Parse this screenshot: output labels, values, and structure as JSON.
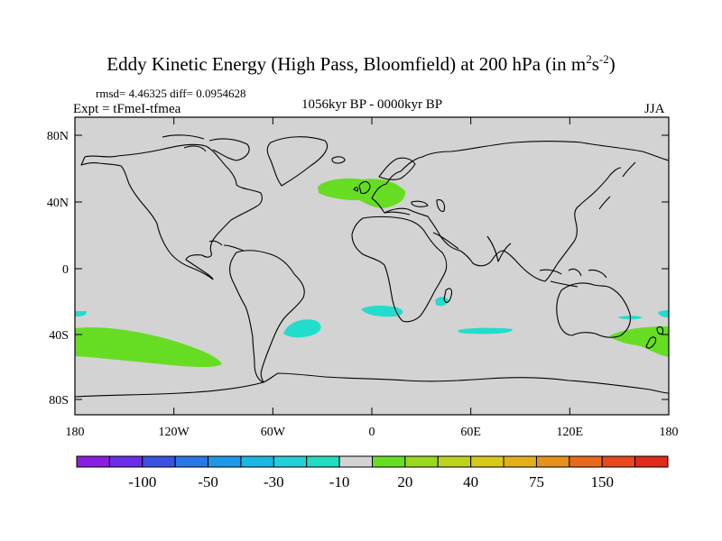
{
  "title": {
    "main": "Eddy Kinetic Energy (High Pass, Bloomfield) at 200 hPa (in m",
    "exp1": "2",
    "s": "s",
    "exp2": "-2",
    "close": ")"
  },
  "stats": "rmsd= 4.46325 diff= 0.0954628",
  "experiment": "Expt = tFmeI-tfmea",
  "period": "1056kyr BP - 0000kyr BP",
  "season": "JJA",
  "colors": {
    "background": "#d3d3d3",
    "positive": "#66dd22",
    "negative": "#22ddcc",
    "coast": "#000000"
  },
  "map": {
    "lon_ticks": [
      "180",
      "120W",
      "60W",
      "0",
      "60E",
      "120E",
      "180"
    ],
    "lat_ticks": [
      "80N",
      "40N",
      "0",
      "40S",
      "80S"
    ],
    "anomalies": [
      {
        "type": "positive",
        "region": "North Atlantic / Europe"
      },
      {
        "type": "positive",
        "region": "South Pacific"
      },
      {
        "type": "positive",
        "region": "Tasman Sea / New Zealand"
      },
      {
        "type": "negative",
        "region": "South Atlantic"
      },
      {
        "type": "negative",
        "region": "South Atlantic east"
      },
      {
        "type": "negative",
        "region": "Madagascar"
      },
      {
        "type": "negative",
        "region": "South Indian Ocean"
      },
      {
        "type": "negative",
        "region": "Tasman Sea north"
      }
    ]
  },
  "colorbar": {
    "colors": [
      "#8a1ee0",
      "#6a2ee8",
      "#3a52e0",
      "#2a78e6",
      "#1e98e8",
      "#1ab6e4",
      "#22d0d8",
      "#22dcc0",
      "#d3d3d3",
      "#66dd22",
      "#99d81e",
      "#bcd21c",
      "#d8c81a",
      "#e4b01a",
      "#e8901c",
      "#e86a1c",
      "#e8481c",
      "#e02a1a"
    ],
    "labels": [
      "-100",
      "-50",
      "-30",
      "-10",
      "20",
      "40",
      "75",
      "150"
    ]
  }
}
